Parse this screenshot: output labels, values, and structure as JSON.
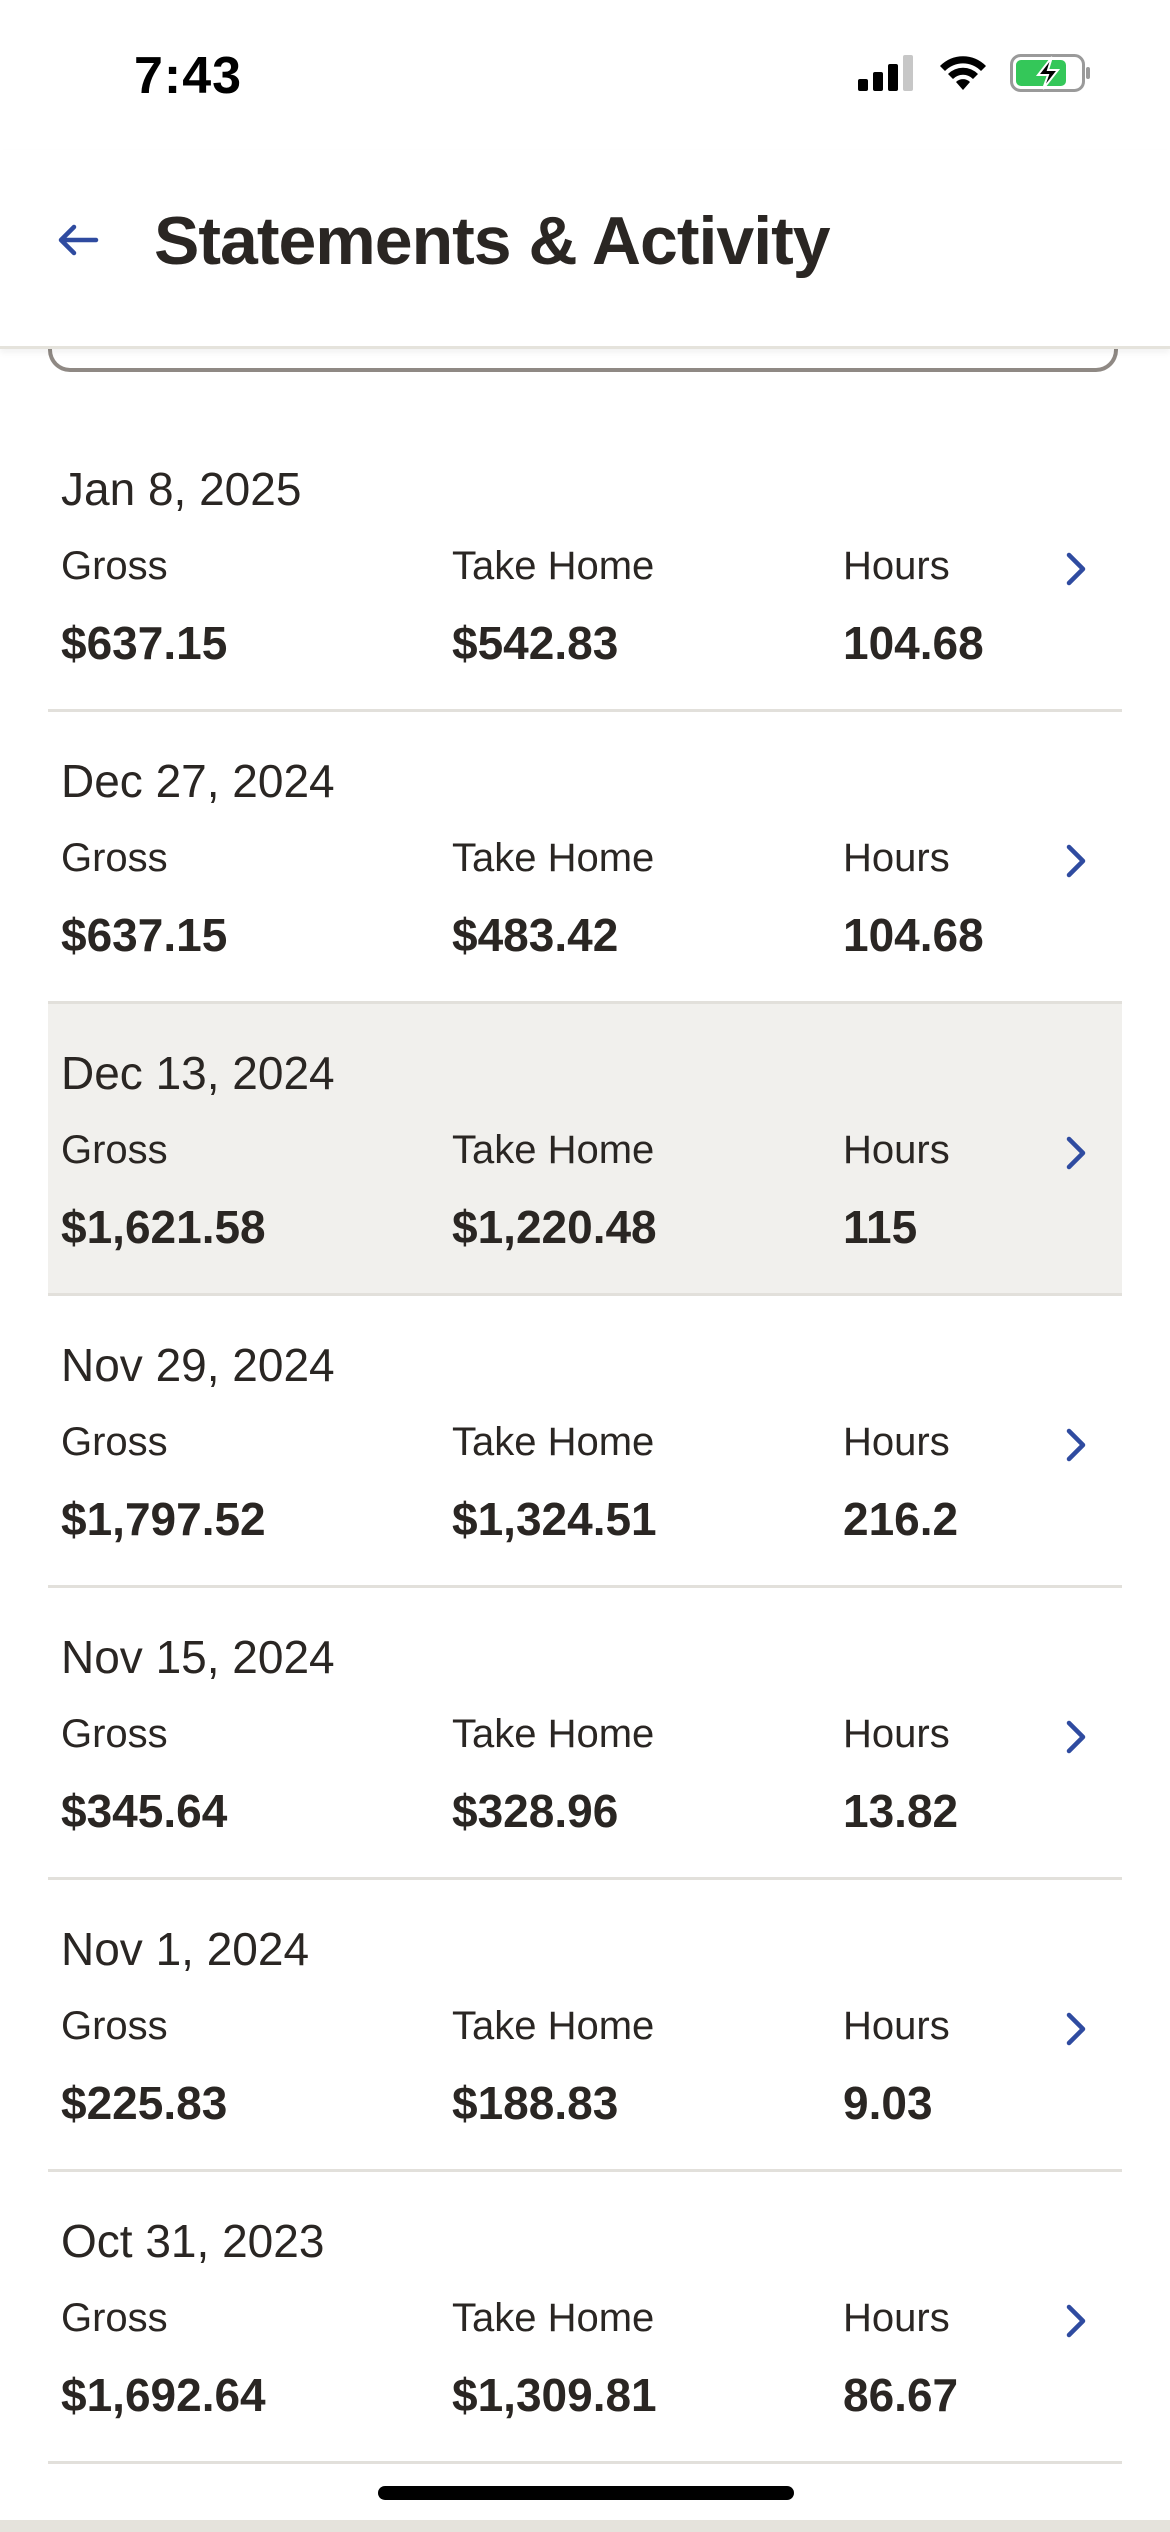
{
  "status_bar": {
    "time": "7:43"
  },
  "header": {
    "title": "Statements & Activity",
    "back_icon": "arrow-left-icon",
    "accent_color": "#2f4ba0"
  },
  "labels": {
    "gross": "Gross",
    "take_home": "Take Home",
    "hours": "Hours"
  },
  "statements": [
    {
      "date": "Jan 8, 2025",
      "gross": "$637.15",
      "take_home": "$542.83",
      "hours": "104.68"
    },
    {
      "date": "Dec 27, 2024",
      "gross": "$637.15",
      "take_home": "$483.42",
      "hours": "104.68"
    },
    {
      "date": "Dec 13, 2024",
      "gross": "$1,621.58",
      "take_home": "$1,220.48",
      "hours": "115"
    },
    {
      "date": "Nov 29, 2024",
      "gross": "$1,797.52",
      "take_home": "$1,324.51",
      "hours": "216.2"
    },
    {
      "date": "Nov 15, 2024",
      "gross": "$345.64",
      "take_home": "$328.96",
      "hours": "13.82"
    },
    {
      "date": "Nov 1, 2024",
      "gross": "$225.83",
      "take_home": "$188.83",
      "hours": "9.03"
    },
    {
      "date": "Oct 31, 2023",
      "gross": "$1,692.64",
      "take_home": "$1,309.81",
      "hours": "86.67"
    }
  ]
}
